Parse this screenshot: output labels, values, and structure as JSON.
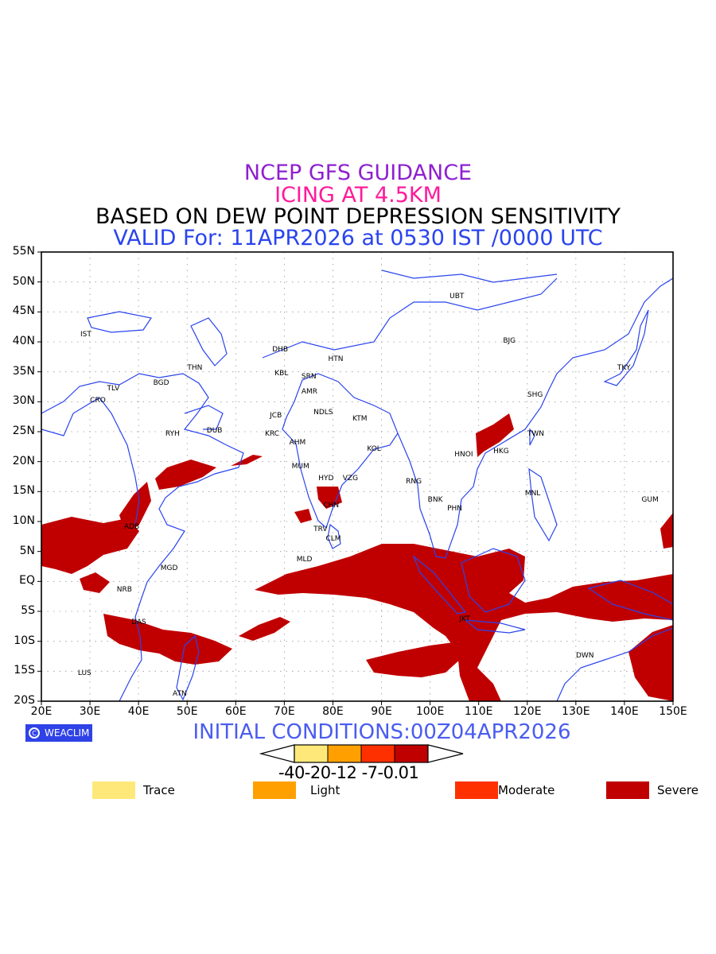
{
  "titles": {
    "line1": {
      "text": "NCEP GFS GUIDANCE",
      "color": "#8f1fd0"
    },
    "line2": {
      "text": "ICING AT 4.5KM",
      "color": "#ff1a9a"
    },
    "line3": {
      "text": "BASED ON DEW POINT DEPRESSION SENSITIVITY",
      "color": "#000000"
    },
    "line4": {
      "text": "VALID For: 11APR2026 at 0530 IST /0000 UTC",
      "color": "#2a44ee"
    }
  },
  "map": {
    "lat_labels": [
      "55N",
      "50N",
      "45N",
      "40N",
      "35N",
      "30N",
      "25N",
      "20N",
      "15N",
      "10N",
      "5N",
      "EQ",
      "5S",
      "10S",
      "15S",
      "20S"
    ],
    "lon_labels": [
      "20E",
      "30E",
      "40E",
      "50E",
      "60E",
      "70E",
      "80E",
      "90E",
      "100E",
      "110E",
      "120E",
      "130E",
      "140E",
      "150E"
    ],
    "lat_range": [
      -20,
      55
    ],
    "lon_range": [
      20,
      150
    ],
    "coast_color": "#2a44ee",
    "icing_color": "#c00000",
    "cities": [
      {
        "code": "UBT",
        "lon": 105,
        "lat": 47.5
      },
      {
        "code": "IST",
        "lon": 29,
        "lat": 41
      },
      {
        "code": "DHB",
        "lon": 68.5,
        "lat": 38.5
      },
      {
        "code": "HTN",
        "lon": 80,
        "lat": 37
      },
      {
        "code": "BJG",
        "lon": 116,
        "lat": 40
      },
      {
        "code": "THN",
        "lon": 51,
        "lat": 35.5
      },
      {
        "code": "KBL",
        "lon": 69,
        "lat": 34.5
      },
      {
        "code": "SRN",
        "lon": 74.5,
        "lat": 34
      },
      {
        "code": "TKY",
        "lon": 139.5,
        "lat": 35.5
      },
      {
        "code": "BGD",
        "lon": 44,
        "lat": 33
      },
      {
        "code": "TLV",
        "lon": 34.5,
        "lat": 32
      },
      {
        "code": "AMR",
        "lon": 74.5,
        "lat": 31.5
      },
      {
        "code": "SHG",
        "lon": 121,
        "lat": 31
      },
      {
        "code": "CRO",
        "lon": 31,
        "lat": 30
      },
      {
        "code": "JCB",
        "lon": 68,
        "lat": 27.5
      },
      {
        "code": "NDLS",
        "lon": 77,
        "lat": 28
      },
      {
        "code": "KTM",
        "lon": 85,
        "lat": 27
      },
      {
        "code": "RYH",
        "lon": 46.5,
        "lat": 24.5
      },
      {
        "code": "DUB",
        "lon": 55,
        "lat": 25
      },
      {
        "code": "KRC",
        "lon": 67,
        "lat": 24.5
      },
      {
        "code": "TWN",
        "lon": 121,
        "lat": 24.5
      },
      {
        "code": "AHM",
        "lon": 72,
        "lat": 23
      },
      {
        "code": "KOL",
        "lon": 88,
        "lat": 22
      },
      {
        "code": "HNOI",
        "lon": 106,
        "lat": 21
      },
      {
        "code": "HKG",
        "lon": 114,
        "lat": 21.5
      },
      {
        "code": "MUM",
        "lon": 72.5,
        "lat": 19
      },
      {
        "code": "HYD",
        "lon": 78,
        "lat": 17
      },
      {
        "code": "VZG",
        "lon": 83,
        "lat": 17
      },
      {
        "code": "RNG",
        "lon": 96,
        "lat": 16.5
      },
      {
        "code": "MNL",
        "lon": 120.5,
        "lat": 14.5
      },
      {
        "code": "GUM",
        "lon": 144.5,
        "lat": 13.5
      },
      {
        "code": "BNK",
        "lon": 100.5,
        "lat": 13.5
      },
      {
        "code": "CHN",
        "lon": 79,
        "lat": 12.5
      },
      {
        "code": "PHN",
        "lon": 104.5,
        "lat": 12
      },
      {
        "code": "ADB",
        "lon": 38,
        "lat": 9
      },
      {
        "code": "TRV",
        "lon": 77,
        "lat": 8.5
      },
      {
        "code": "CLM",
        "lon": 79.5,
        "lat": 7
      },
      {
        "code": "MLD",
        "lon": 73.5,
        "lat": 3.5
      },
      {
        "code": "MGD",
        "lon": 45.5,
        "lat": 2
      },
      {
        "code": "NRB",
        "lon": 36.5,
        "lat": -1.5
      },
      {
        "code": "JKT",
        "lon": 107,
        "lat": -6.5
      },
      {
        "code": "DAS",
        "lon": 39.5,
        "lat": -7
      },
      {
        "code": "DWN",
        "lon": 131,
        "lat": -12.5
      },
      {
        "code": "LUS",
        "lon": 28.5,
        "lat": -15.5
      },
      {
        "code": "ATN",
        "lon": 48,
        "lat": -19
      }
    ]
  },
  "initial_conditions": "INITIAL CONDITIONS:00Z04APR2026",
  "logo": {
    "text": "WEACLIM"
  },
  "colorbar": {
    "values": "-40-20-12 -7-0.01",
    "colors": [
      "#ffe87a",
      "#ffa000",
      "#ff3000",
      "#c00000"
    ]
  },
  "legend": [
    {
      "label": "Trace",
      "color": "#ffe87a"
    },
    {
      "label": "Light",
      "color": "#ffa000"
    },
    {
      "label": "Moderate",
      "color": "#ff3000"
    },
    {
      "label": "Severe",
      "color": "#c00000"
    }
  ]
}
